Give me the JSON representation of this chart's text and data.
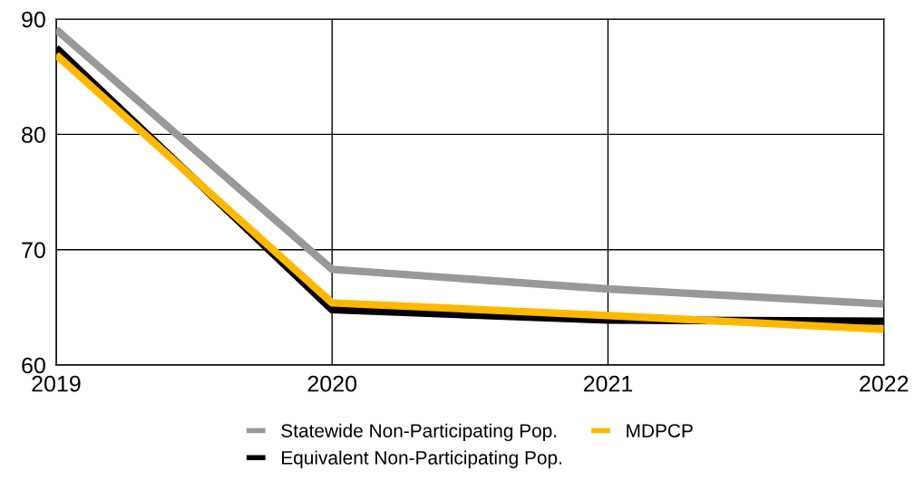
{
  "chart_data": {
    "type": "line",
    "categories": [
      "2019",
      "2020",
      "2021",
      "2022"
    ],
    "series": [
      {
        "name": "Statewide Non-Participating Pop.",
        "color": "#999999",
        "values": [
          89.1,
          68.3,
          66.6,
          65.3
        ]
      },
      {
        "name": "Equivalent Non-Participating Pop.",
        "color": "#000000",
        "values": [
          87.5,
          64.8,
          63.9,
          63.8
        ]
      },
      {
        "name": "MDPCP",
        "color": "#ffb800",
        "values": [
          86.9,
          65.4,
          64.3,
          63.1
        ]
      }
    ],
    "ylim": [
      60,
      90
    ],
    "yticks": [
      60,
      70,
      80,
      90
    ],
    "grid": true,
    "legend": "bottom",
    "marker": "none",
    "line_style": "solid"
  }
}
